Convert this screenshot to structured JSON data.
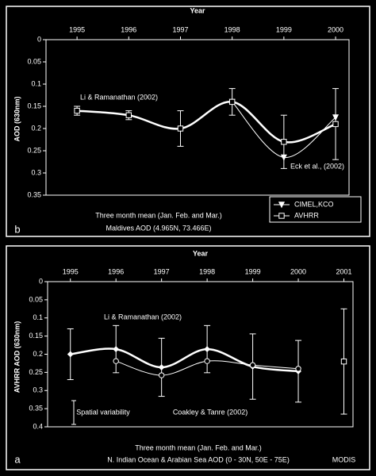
{
  "chart_data": [
    {
      "type": "line",
      "label": "a",
      "title": "N. Indian Ocean & Arabian Sea AOD (0 - 30N, 50E - 75E)",
      "subtitle": "Three month mean (Jan. Feb. and Mar.)",
      "x_label": "Year",
      "y_label": "AVHRR AOD (630nm)",
      "xlim": [
        1994.5,
        2001.2
      ],
      "xticks": [
        1995,
        1996,
        1997,
        1998,
        1999,
        2000,
        2001
      ],
      "ylim": [
        0,
        0.4
      ],
      "yticks": [
        0,
        0.05,
        0.1,
        0.15,
        0.2,
        0.25,
        0.3,
        0.35,
        0.4
      ],
      "series": [
        {
          "color": "#ffffff",
          "linewidth": 2.5,
          "marker": "diamond",
          "x": [
            1995,
            1996,
            1997,
            1998,
            1999,
            2000
          ],
          "values": [
            0.2,
            0.186,
            0.236,
            0.186,
            0.234,
            0.247
          ],
          "errors": [
            0.07,
            0.065,
            0.08,
            0.065,
            0.09,
            0.085
          ]
        },
        {
          "color": "#ffffff",
          "linewidth": 1,
          "marker": "circle",
          "x": [
            1996,
            1997,
            1998,
            1999,
            2000
          ],
          "values": [
            0.219,
            0.258,
            0.219,
            0.23,
            0.24
          ]
        },
        {
          "name": "MODIS",
          "color": "#ffffff",
          "linewidth": 0,
          "marker": "square",
          "x": [
            2001
          ],
          "values": [
            0.22
          ],
          "errors": [
            0.145
          ]
        }
      ],
      "annotations": [
        "Li & Ramanathan (2002)",
        "Spatial variability",
        "Coakley & Tanre (2002)"
      ]
    },
    {
      "type": "line",
      "label": "b",
      "title": "Maldives AOD (4.965N, 73.466E)",
      "subtitle": "Three month mean (Jan. Feb. and Mar.)",
      "x_label": "Year",
      "y_label": "AOD (630nm)",
      "xlim": [
        1994.4,
        2000.26
      ],
      "xticks": [
        1995,
        1996,
        1997,
        1998,
        1999,
        2000
      ],
      "ylim": [
        0,
        0.35
      ],
      "yticks": [
        0,
        0.05,
        0.1,
        0.15,
        0.2,
        0.25,
        0.3,
        0.35
      ],
      "legend": "bottom-right",
      "series": [
        {
          "name": "CIMEL,KCO",
          "color": "#ffffff",
          "linewidth": 1,
          "marker": "triangle",
          "x": [
            1998,
            1999,
            2000
          ],
          "values": [
            0.14,
            0.265,
            0.175
          ]
        },
        {
          "name": "AVHRR",
          "color": "#ffffff",
          "linewidth": 2.5,
          "marker": "square",
          "x": [
            1995,
            1996,
            1997,
            1998,
            1999,
            2000
          ],
          "values": [
            0.16,
            0.17,
            0.2,
            0.14,
            0.23,
            0.19
          ],
          "errors": [
            0.01,
            0.01,
            0.04,
            0.03,
            0.06,
            0.08
          ]
        }
      ],
      "annotations": [
        "Li & Ramanathan (2002)",
        "Eck et al., (2002)"
      ]
    }
  ]
}
